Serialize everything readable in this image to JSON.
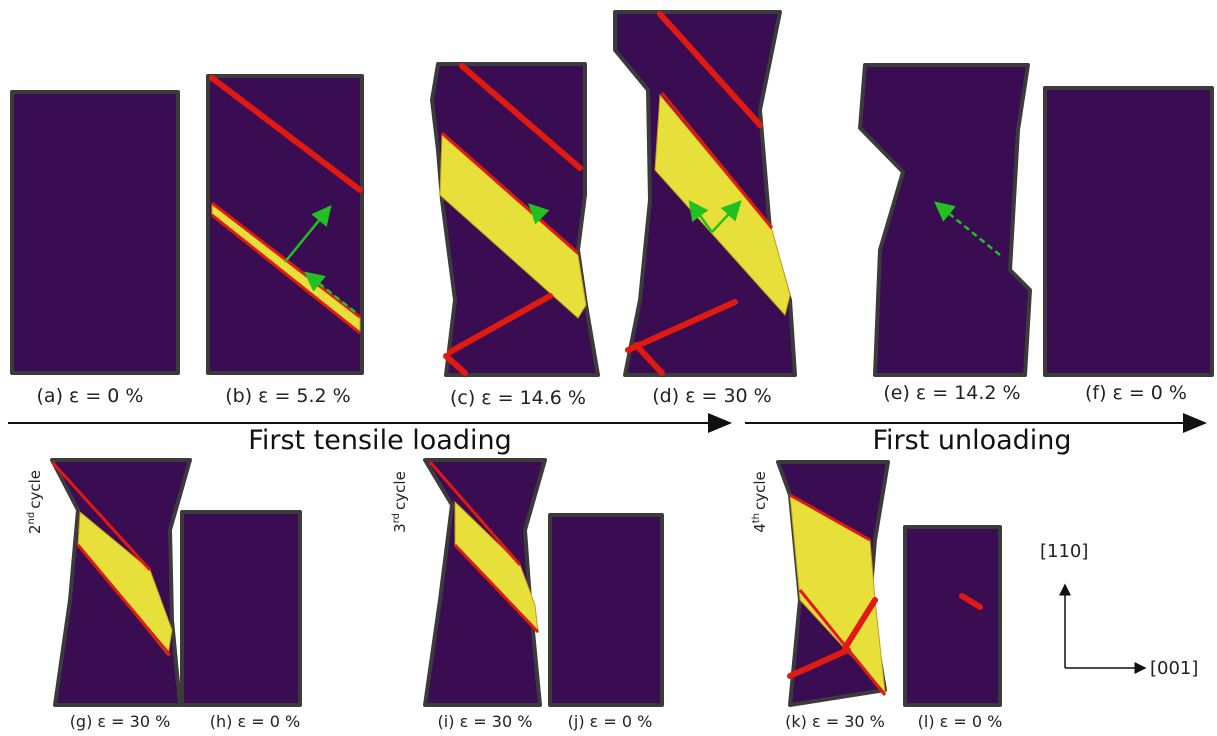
{
  "top_row": {
    "panels": [
      {
        "label": "(a) ε = 0 %"
      },
      {
        "label": "(b) ε = 5.2 %"
      },
      {
        "label": "(c) ε = 14.6 %"
      },
      {
        "label": "(d) ε = 30 %"
      },
      {
        "label": "(e) ε = 14.2 %"
      },
      {
        "label": "(f) ε = 0 %"
      }
    ]
  },
  "arrows": [
    {
      "label": "First tensile loading"
    },
    {
      "label": "First unloading"
    }
  ],
  "bottom_row": {
    "cycles": [
      {
        "number": "2",
        "suffix": "nd",
        "word": "cycle",
        "panels": [
          {
            "label": "(g) ε = 30 %"
          },
          {
            "label": "(h) ε = 0 %"
          }
        ]
      },
      {
        "number": "3",
        "suffix": "rd",
        "word": "cycle",
        "panels": [
          {
            "label": "(i) ε = 30 %"
          },
          {
            "label": "(j) ε = 0 %"
          }
        ]
      },
      {
        "number": "4",
        "suffix": "th",
        "word": "cycle",
        "panels": [
          {
            "label": "(k) ε = 30 %"
          },
          {
            "label": "(l) ε = 0 %"
          }
        ]
      }
    ]
  },
  "axes": {
    "vertical": "[110]",
    "horizontal": "[001]"
  }
}
